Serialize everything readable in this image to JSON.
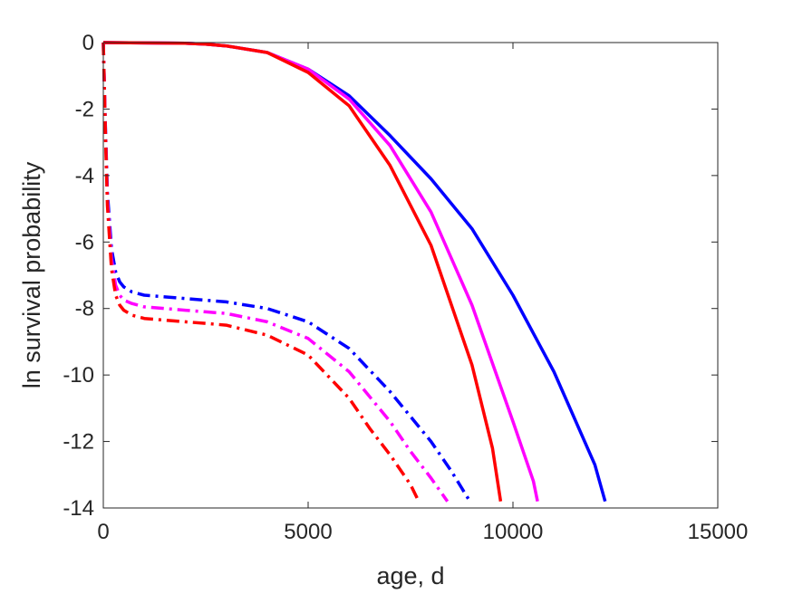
{
  "chart_data": {
    "type": "line",
    "title": "",
    "xlabel": "age, d",
    "ylabel": "ln survival probability",
    "xlim": [
      0,
      15000
    ],
    "ylim": [
      -14,
      0
    ],
    "xticks": [
      0,
      5000,
      10000,
      15000
    ],
    "yticks": [
      0,
      -2,
      -4,
      -6,
      -8,
      -10,
      -12,
      -14
    ],
    "xtick_labels": [
      "0",
      "5000",
      "10000",
      "15000"
    ],
    "ytick_labels": [
      "0",
      "-2",
      "-4",
      "-6",
      "-8",
      "-10",
      "-12",
      "-14"
    ],
    "grid": false,
    "legend": "none",
    "series": [
      {
        "color": "#0000ff",
        "style": "solid",
        "x": [
          0,
          1000,
          2000,
          2500,
          3000,
          4000,
          5000,
          6000,
          7000,
          8000,
          9000,
          10000,
          11000,
          12000,
          12250
        ],
        "y": [
          0,
          -0.01,
          -0.02,
          -0.05,
          -0.1,
          -0.3,
          -0.8,
          -1.6,
          -2.8,
          -4.1,
          -5.6,
          -7.6,
          -9.9,
          -12.7,
          -13.8
        ]
      },
      {
        "color": "#ff00ff",
        "style": "solid",
        "x": [
          0,
          1000,
          2000,
          2500,
          3000,
          4000,
          5000,
          6000,
          7000,
          8000,
          9000,
          10000,
          10500,
          10600
        ],
        "y": [
          0,
          -0.01,
          -0.02,
          -0.05,
          -0.1,
          -0.3,
          -0.8,
          -1.7,
          -3.1,
          -5.1,
          -7.9,
          -11.4,
          -13.2,
          -13.8
        ]
      },
      {
        "color": "#ff0000",
        "style": "solid",
        "x": [
          0,
          1000,
          2000,
          2500,
          3000,
          4000,
          5000,
          6000,
          7000,
          8000,
          9000,
          9500,
          9700
        ],
        "y": [
          0,
          -0.01,
          -0.02,
          -0.05,
          -0.1,
          -0.3,
          -0.9,
          -1.9,
          -3.7,
          -6.1,
          -9.7,
          -12.2,
          -13.8
        ]
      },
      {
        "color": "#0000ff",
        "style": "dashdot",
        "x": [
          0,
          50,
          100,
          200,
          300,
          400,
          500,
          700,
          1000,
          1500,
          2000,
          2500,
          3000,
          4000,
          5000,
          6000,
          7000,
          8000,
          8500,
          8950
        ],
        "y": [
          0,
          -2.5,
          -4.5,
          -6.2,
          -6.9,
          -7.2,
          -7.35,
          -7.5,
          -7.6,
          -7.65,
          -7.7,
          -7.75,
          -7.8,
          -8.0,
          -8.4,
          -9.2,
          -10.5,
          -12.0,
          -12.9,
          -13.8
        ]
      },
      {
        "color": "#ff00ff",
        "style": "dashdot",
        "x": [
          0,
          50,
          100,
          200,
          300,
          400,
          500,
          700,
          1000,
          1500,
          2000,
          2500,
          3000,
          4000,
          5000,
          6000,
          7000,
          7500,
          8000,
          8400
        ],
        "y": [
          0,
          -2.6,
          -4.7,
          -6.5,
          -7.3,
          -7.6,
          -7.75,
          -7.85,
          -7.95,
          -8.0,
          -8.05,
          -8.1,
          -8.15,
          -8.4,
          -8.9,
          -9.9,
          -11.4,
          -12.3,
          -13.1,
          -13.8
        ]
      },
      {
        "color": "#ff0000",
        "style": "dashdot",
        "x": [
          0,
          50,
          100,
          200,
          300,
          400,
          500,
          700,
          1000,
          1500,
          2000,
          2500,
          3000,
          4000,
          5000,
          6000,
          6500,
          7000,
          7500,
          7700
        ],
        "y": [
          0,
          -2.7,
          -4.9,
          -6.8,
          -7.6,
          -7.9,
          -8.05,
          -8.2,
          -8.3,
          -8.35,
          -8.4,
          -8.45,
          -8.5,
          -8.8,
          -9.4,
          -10.7,
          -11.6,
          -12.4,
          -13.3,
          -13.8
        ]
      }
    ]
  }
}
